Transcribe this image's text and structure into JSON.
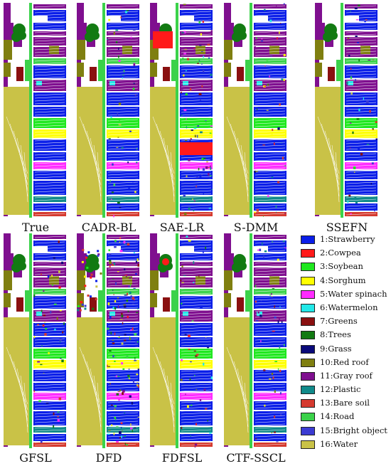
{
  "panels": [
    {
      "label": "True"
    },
    {
      "label": "CADR-BL"
    },
    {
      "label": "SAE-LR"
    },
    {
      "label": "S-DMM"
    },
    {
      "label": "SSEFN"
    },
    {
      "label": "GFSL"
    },
    {
      "label": "DFD"
    },
    {
      "label": "FDFSL"
    },
    {
      "label": "CTF-SSCL"
    }
  ],
  "legend": [
    {
      "label": "1:Strawberry",
      "color": "#0a1ee8"
    },
    {
      "label": "2:Cowpea",
      "color": "#ff1a1a"
    },
    {
      "label": "3:Soybean",
      "color": "#1fe81f"
    },
    {
      "label": "4:Sorghum",
      "color": "#ffff00"
    },
    {
      "label": "5:Water spinach",
      "color": "#ff2bff"
    },
    {
      "label": "6:Watermelon",
      "color": "#22e8e8"
    },
    {
      "label": "7:Greens",
      "color": "#8a1010"
    },
    {
      "label": "8:Trees",
      "color": "#127a12"
    },
    {
      "label": "9:Grass",
      "color": "#0a0a7a"
    },
    {
      "label": "10:Red roof",
      "color": "#7f7f10"
    },
    {
      "label": "11:Gray roof",
      "color": "#7f0f8f"
    },
    {
      "label": "12:Plastic",
      "color": "#108a8a"
    },
    {
      "label": "13:Bare soil",
      "color": "#d53a2f"
    },
    {
      "label": "14:Road",
      "color": "#3bd24a"
    },
    {
      "label": "15:Bright object",
      "color": "#3b3bd2"
    },
    {
      "label": "16:Water",
      "color": "#c9c247"
    }
  ]
}
